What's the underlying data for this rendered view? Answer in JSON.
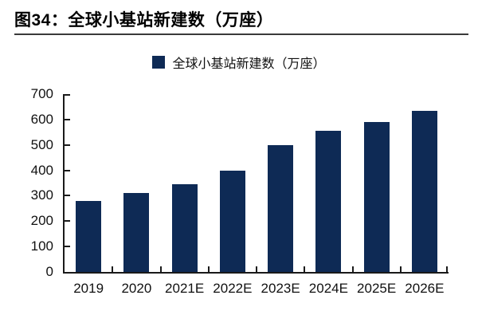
{
  "header": {
    "title": "图34：全球小基站新建数（万座）"
  },
  "legend": {
    "label": "全球小基站新建数（万座）"
  },
  "colors": {
    "bar": "#0e2a55",
    "axis": "#1a1a1a",
    "text": "#111111"
  },
  "chart_data": {
    "type": "bar",
    "title": "全球小基站新建数（万座）",
    "categories": [
      "2019",
      "2020",
      "2021E",
      "2022E",
      "2023E",
      "2024E",
      "2025E",
      "2026E"
    ],
    "values": [
      280,
      310,
      345,
      400,
      500,
      555,
      590,
      635
    ],
    "xlabel": "",
    "ylabel": "",
    "ylim": [
      0,
      700
    ],
    "yticks": [
      0,
      100,
      200,
      300,
      400,
      500,
      600,
      700
    ],
    "grid": false,
    "legend_position": "top",
    "bar_color": "#0e2a55"
  }
}
